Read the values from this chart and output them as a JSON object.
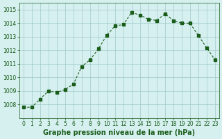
{
  "x": [
    0,
    1,
    2,
    3,
    4,
    5,
    6,
    7,
    8,
    9,
    10,
    11,
    12,
    13,
    14,
    15,
    16,
    17,
    18,
    19,
    20,
    21,
    22,
    23
  ],
  "y": [
    1007.8,
    1007.8,
    1008.4,
    1009.0,
    1008.9,
    1009.1,
    1009.5,
    1010.8,
    1011.3,
    1012.1,
    1013.1,
    1013.8,
    1013.9,
    1014.8,
    1014.6,
    1014.3,
    1014.2,
    1014.7,
    1014.2,
    1014.0,
    1014.0,
    1013.1,
    1012.2,
    1011.3
  ],
  "line_color": "#1a5c1a",
  "marker": "s",
  "marker_size": 3,
  "bg_color": "#d6f0f0",
  "grid_color": "#a0c8c8",
  "ylim": [
    1007,
    1015.5
  ],
  "xlim": [
    -0.5,
    23.5
  ],
  "yticks": [
    1008,
    1009,
    1010,
    1011,
    1012,
    1013,
    1014,
    1015
  ],
  "xticks": [
    0,
    1,
    2,
    3,
    4,
    5,
    6,
    7,
    8,
    9,
    10,
    11,
    12,
    13,
    14,
    15,
    16,
    17,
    18,
    19,
    20,
    21,
    22,
    23
  ],
  "xlabel": "Graphe pression niveau de la mer (hPa)",
  "xlabel_fontsize": 7,
  "tick_fontsize": 5.5,
  "tick_color": "#1a5c1a",
  "label_color": "#1a5c1a"
}
